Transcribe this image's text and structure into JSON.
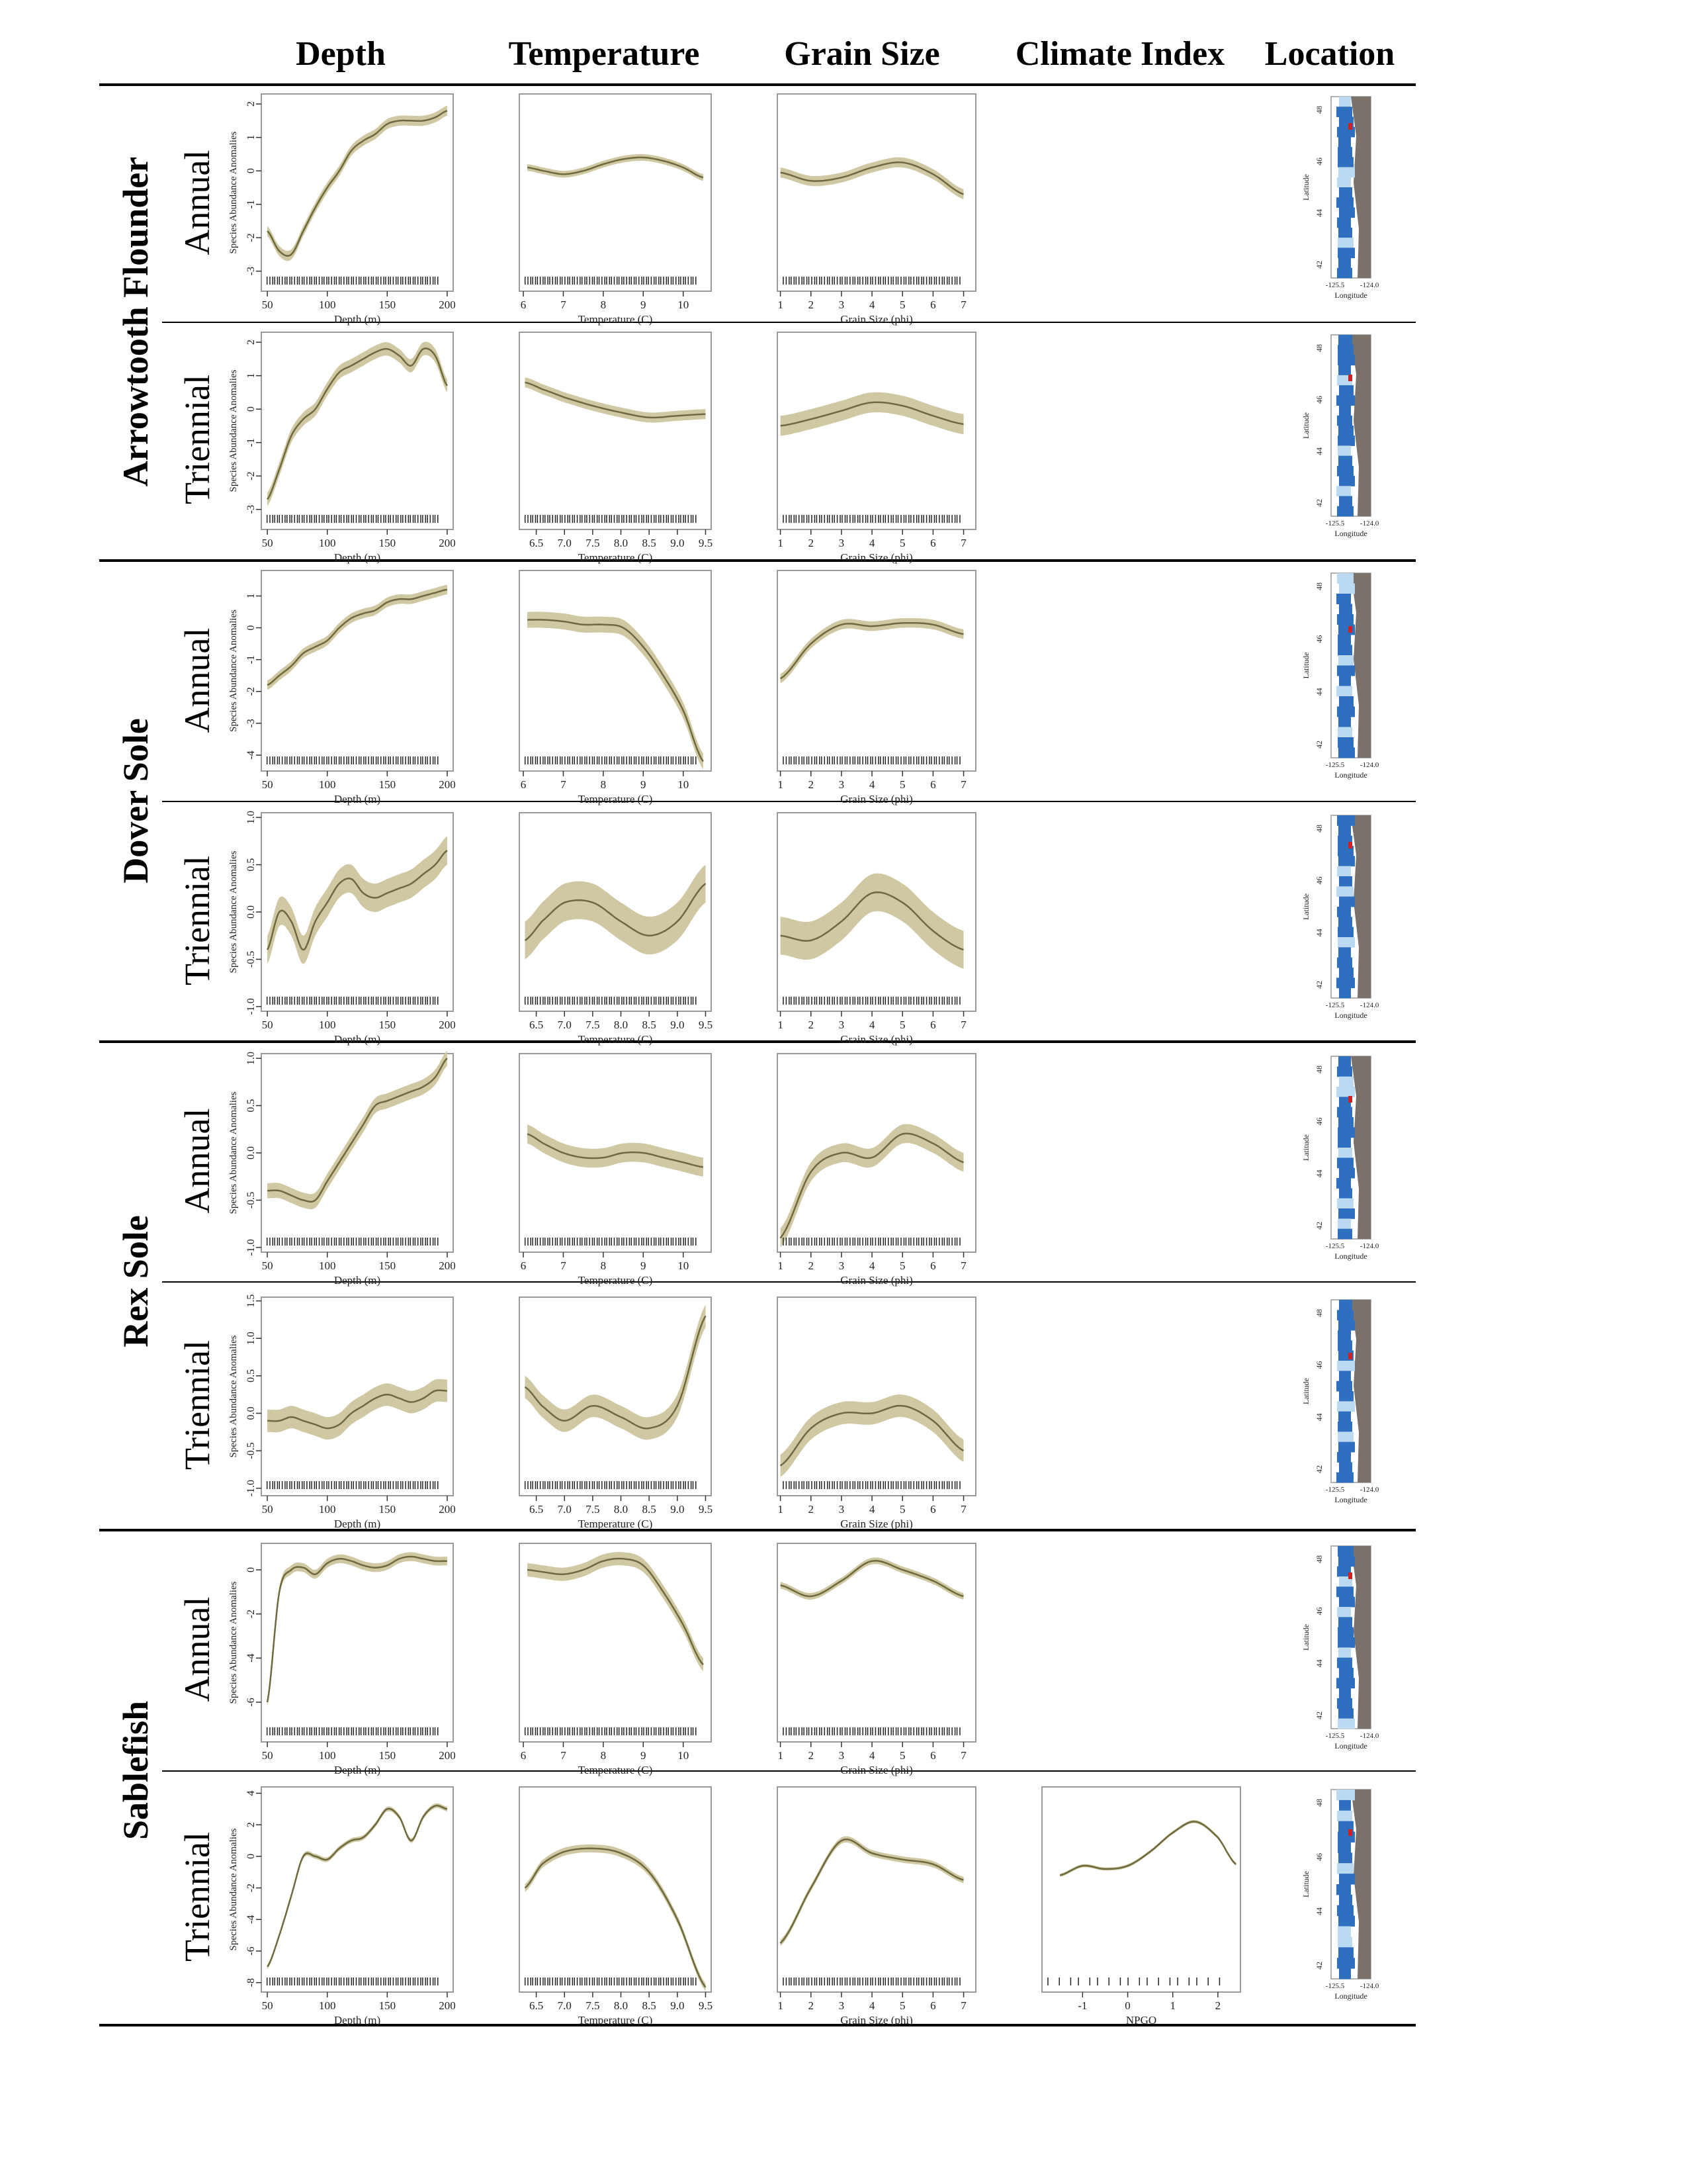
{
  "headers": [
    "Depth",
    "Temperature",
    "Grain Size",
    "Climate Index",
    "Location"
  ],
  "species": [
    "Arrowtooth Flounder",
    "Dover Sole",
    "Rex Sole",
    "Sablefish"
  ],
  "surveys": [
    "Annual",
    "Triennial"
  ],
  "axis_labels": {
    "ylabel": "Species Abundance Anomalies",
    "depth": "Depth (m)",
    "temperature": "Temperature (C)",
    "grain": "Grain Size (phi)",
    "climate": "NPGO",
    "lat": "Latitude",
    "lon": "Longitude"
  },
  "map_ticks": {
    "lat": [
      "48",
      "46",
      "44",
      "42"
    ],
    "lon": [
      "-125.5",
      "-124.0"
    ]
  },
  "colors": {
    "band": "#cfc8a2",
    "curve": "#6f6a3e",
    "land": "#7b716b",
    "water_dark": "#2f6fc0",
    "water_light": "#bcd9f2",
    "hotspot": "#cc2222"
  },
  "chart_data": [
    {
      "type": "line",
      "species": "Arrowtooth Flounder",
      "survey": "Annual",
      "variable": "Depth",
      "x_ticks": [
        "50",
        "100",
        "150",
        "200"
      ],
      "y_ticks": [
        "2",
        "1",
        "0",
        "-1",
        "-2",
        "-3"
      ],
      "xlim": [
        45,
        205
      ],
      "ylim": [
        -3.6,
        2.3
      ],
      "x": [
        50,
        60,
        70,
        80,
        90,
        100,
        110,
        120,
        130,
        140,
        150,
        160,
        170,
        180,
        190,
        200
      ],
      "y": [
        -1.8,
        -2.4,
        -2.5,
        -1.8,
        -1.1,
        -0.5,
        0.0,
        0.6,
        0.9,
        1.1,
        1.4,
        1.5,
        1.5,
        1.5,
        1.6,
        1.8
      ],
      "band": 0.15
    },
    {
      "type": "line",
      "species": "Arrowtooth Flounder",
      "survey": "Annual",
      "variable": "Temperature",
      "x_ticks": [
        "6",
        "7",
        "8",
        "9",
        "10"
      ],
      "y_ticks": [],
      "xlim": [
        5.9,
        10.7
      ],
      "ylim": [
        -3.6,
        2.3
      ],
      "x": [
        6.1,
        6.5,
        7,
        7.5,
        8,
        8.5,
        9,
        9.5,
        10,
        10.5
      ],
      "y": [
        0.1,
        0.0,
        -0.1,
        0.0,
        0.2,
        0.35,
        0.4,
        0.3,
        0.1,
        -0.2
      ],
      "band": 0.1
    },
    {
      "type": "line",
      "species": "Arrowtooth Flounder",
      "survey": "Annual",
      "variable": "Grain Size",
      "x_ticks": [
        "1",
        "2",
        "3",
        "4",
        "5",
        "6",
        "7"
      ],
      "y_ticks": [],
      "xlim": [
        0.9,
        7.4
      ],
      "ylim": [
        -3.6,
        2.3
      ],
      "x": [
        1,
        2,
        3,
        4,
        5,
        6,
        7
      ],
      "y": [
        -0.05,
        -0.3,
        -0.2,
        0.1,
        0.25,
        -0.1,
        -0.7
      ],
      "band": 0.15
    },
    {
      "type": "line",
      "species": "Arrowtooth Flounder",
      "survey": "Triennial",
      "variable": "Depth",
      "x_ticks": [
        "50",
        "100",
        "150",
        "200"
      ],
      "y_ticks": [
        "2",
        "1",
        "0",
        "-1",
        "-2",
        "-3"
      ],
      "xlim": [
        45,
        205
      ],
      "ylim": [
        -3.6,
        2.3
      ],
      "x": [
        50,
        60,
        70,
        80,
        90,
        100,
        110,
        120,
        130,
        140,
        150,
        160,
        170,
        180,
        190,
        200
      ],
      "y": [
        -2.7,
        -1.8,
        -0.8,
        -0.3,
        0.0,
        0.6,
        1.1,
        1.3,
        1.5,
        1.7,
        1.8,
        1.6,
        1.3,
        1.8,
        1.6,
        0.7
      ],
      "band": 0.2
    },
    {
      "type": "line",
      "species": "Arrowtooth Flounder",
      "survey": "Triennial",
      "variable": "Temperature",
      "x_ticks": [
        "6.5",
        "7.0",
        "7.5",
        "8.0",
        "8.5",
        "9.0",
        "9.5"
      ],
      "y_ticks": [],
      "xlim": [
        6.2,
        9.6
      ],
      "ylim": [
        -3.6,
        2.3
      ],
      "x": [
        6.3,
        6.6,
        7,
        7.5,
        8,
        8.5,
        9,
        9.5
      ],
      "y": [
        0.8,
        0.6,
        0.35,
        0.1,
        -0.1,
        -0.25,
        -0.2,
        -0.15
      ],
      "band": 0.15
    },
    {
      "type": "line",
      "species": "Arrowtooth Flounder",
      "survey": "Triennial",
      "variable": "Grain Size",
      "x_ticks": [
        "1",
        "2",
        "3",
        "4",
        "5",
        "6",
        "7"
      ],
      "y_ticks": [],
      "xlim": [
        0.9,
        7.4
      ],
      "ylim": [
        -3.6,
        2.3
      ],
      "x": [
        1,
        2,
        3,
        4,
        5,
        6,
        7
      ],
      "y": [
        -0.5,
        -0.3,
        -0.05,
        0.2,
        0.1,
        -0.2,
        -0.45
      ],
      "band": 0.3
    },
    {
      "type": "line",
      "species": "Dover Sole",
      "survey": "Annual",
      "variable": "Depth",
      "x_ticks": [
        "50",
        "100",
        "150",
        "200"
      ],
      "y_ticks": [
        "1",
        "0",
        "-1",
        "-2",
        "-3",
        "-4"
      ],
      "xlim": [
        45,
        205
      ],
      "ylim": [
        -4.5,
        1.8
      ],
      "x": [
        50,
        60,
        70,
        80,
        90,
        100,
        110,
        120,
        130,
        140,
        150,
        160,
        170,
        180,
        190,
        200
      ],
      "y": [
        -1.8,
        -1.5,
        -1.2,
        -0.8,
        -0.6,
        -0.4,
        0.0,
        0.3,
        0.45,
        0.55,
        0.8,
        0.9,
        0.9,
        1.0,
        1.1,
        1.2
      ],
      "band": 0.15
    },
    {
      "type": "line",
      "species": "Dover Sole",
      "survey": "Annual",
      "variable": "Temperature",
      "x_ticks": [
        "6",
        "7",
        "8",
        "9",
        "10"
      ],
      "y_ticks": [],
      "xlim": [
        5.9,
        10.7
      ],
      "ylim": [
        -4.5,
        1.8
      ],
      "x": [
        6.1,
        6.5,
        7,
        7.5,
        8,
        8.5,
        9,
        9.5,
        10,
        10.5
      ],
      "y": [
        0.25,
        0.25,
        0.2,
        0.1,
        0.1,
        0.0,
        -0.6,
        -1.5,
        -2.6,
        -4.2
      ],
      "band": 0.25
    },
    {
      "type": "line",
      "species": "Dover Sole",
      "survey": "Annual",
      "variable": "Grain Size",
      "x_ticks": [
        "1",
        "2",
        "3",
        "4",
        "5",
        "6",
        "7"
      ],
      "y_ticks": [],
      "xlim": [
        0.9,
        7.4
      ],
      "ylim": [
        -4.5,
        1.8
      ],
      "x": [
        1,
        2,
        3,
        4,
        5,
        6,
        7
      ],
      "y": [
        -1.6,
        -0.5,
        0.1,
        0.05,
        0.15,
        0.1,
        -0.2
      ],
      "band": 0.15
    },
    {
      "type": "line",
      "species": "Dover Sole",
      "survey": "Triennial",
      "variable": "Depth",
      "x_ticks": [
        "50",
        "100",
        "150",
        "200"
      ],
      "y_ticks": [
        "1.0",
        "0.5",
        "0.0",
        "-0.5",
        "-1.0"
      ],
      "xlim": [
        45,
        205
      ],
      "ylim": [
        -1.05,
        1.05
      ],
      "x": [
        50,
        60,
        70,
        80,
        90,
        100,
        110,
        120,
        130,
        140,
        150,
        160,
        170,
        180,
        190,
        200
      ],
      "y": [
        -0.4,
        0.0,
        -0.1,
        -0.4,
        -0.1,
        0.1,
        0.3,
        0.35,
        0.2,
        0.15,
        0.2,
        0.25,
        0.3,
        0.4,
        0.5,
        0.65
      ],
      "band": 0.15
    },
    {
      "type": "line",
      "species": "Dover Sole",
      "survey": "Triennial",
      "variable": "Temperature",
      "x_ticks": [
        "6.5",
        "7.0",
        "7.5",
        "8.0",
        "8.5",
        "9.0",
        "9.5"
      ],
      "y_ticks": [],
      "xlim": [
        6.2,
        9.6
      ],
      "ylim": [
        -1.05,
        1.05
      ],
      "x": [
        6.3,
        6.6,
        7,
        7.5,
        8,
        8.5,
        9,
        9.5
      ],
      "y": [
        -0.3,
        -0.1,
        0.1,
        0.1,
        -0.1,
        -0.25,
        -0.1,
        0.3
      ],
      "band": 0.2
    },
    {
      "type": "line",
      "species": "Dover Sole",
      "survey": "Triennial",
      "variable": "Grain Size",
      "x_ticks": [
        "1",
        "2",
        "3",
        "4",
        "5",
        "6",
        "7"
      ],
      "y_ticks": [],
      "xlim": [
        0.9,
        7.4
      ],
      "ylim": [
        -1.05,
        1.05
      ],
      "x": [
        1,
        2,
        3,
        4,
        5,
        6,
        7
      ],
      "y": [
        -0.25,
        -0.3,
        -0.1,
        0.2,
        0.1,
        -0.2,
        -0.4
      ],
      "band": 0.2
    },
    {
      "type": "line",
      "species": "Rex Sole",
      "survey": "Annual",
      "variable": "Depth",
      "x_ticks": [
        "50",
        "100",
        "150",
        "200"
      ],
      "y_ticks": [
        "1.0",
        "0.5",
        "0.0",
        "-0.5",
        "-1.0"
      ],
      "xlim": [
        45,
        205
      ],
      "ylim": [
        -1.05,
        1.05
      ],
      "x": [
        50,
        60,
        70,
        80,
        90,
        100,
        110,
        120,
        130,
        140,
        150,
        160,
        170,
        180,
        190,
        200
      ],
      "y": [
        -0.4,
        -0.4,
        -0.45,
        -0.5,
        -0.5,
        -0.3,
        -0.1,
        0.1,
        0.3,
        0.5,
        0.55,
        0.6,
        0.65,
        0.7,
        0.8,
        1.0
      ],
      "band": 0.08
    },
    {
      "type": "line",
      "species": "Rex Sole",
      "survey": "Annual",
      "variable": "Temperature",
      "x_ticks": [
        "6",
        "7",
        "8",
        "9",
        "10"
      ],
      "y_ticks": [],
      "xlim": [
        5.9,
        10.7
      ],
      "ylim": [
        -1.05,
        1.05
      ],
      "x": [
        6.1,
        6.5,
        7,
        7.5,
        8,
        8.5,
        9,
        9.5,
        10,
        10.5
      ],
      "y": [
        0.2,
        0.1,
        0.0,
        -0.05,
        -0.05,
        0.0,
        0.0,
        -0.05,
        -0.1,
        -0.15
      ],
      "band": 0.1
    },
    {
      "type": "line",
      "species": "Rex Sole",
      "survey": "Annual",
      "variable": "Grain Size",
      "x_ticks": [
        "1",
        "2",
        "3",
        "4",
        "5",
        "6",
        "7"
      ],
      "y_ticks": [],
      "xlim": [
        0.9,
        7.4
      ],
      "ylim": [
        -1.05,
        1.05
      ],
      "x": [
        1,
        2,
        3,
        4,
        5,
        6,
        7
      ],
      "y": [
        -0.9,
        -0.2,
        0.0,
        -0.05,
        0.2,
        0.1,
        -0.1
      ],
      "band": 0.1
    },
    {
      "type": "line",
      "species": "Rex Sole",
      "survey": "Triennial",
      "variable": "Depth",
      "x_ticks": [
        "50",
        "100",
        "150",
        "200"
      ],
      "y_ticks": [
        "1.5",
        "1.0",
        "0.5",
        "0.0",
        "-0.5",
        "-1.0"
      ],
      "xlim": [
        45,
        205
      ],
      "ylim": [
        -1.1,
        1.55
      ],
      "x": [
        50,
        60,
        70,
        80,
        90,
        100,
        110,
        120,
        130,
        140,
        150,
        160,
        170,
        180,
        190,
        200
      ],
      "y": [
        -0.1,
        -0.1,
        -0.05,
        -0.1,
        -0.15,
        -0.2,
        -0.15,
        0.0,
        0.1,
        0.2,
        0.25,
        0.2,
        0.15,
        0.2,
        0.3,
        0.3
      ],
      "band": 0.15
    },
    {
      "type": "line",
      "species": "Rex Sole",
      "survey": "Triennial",
      "variable": "Temperature",
      "x_ticks": [
        "6.5",
        "7.0",
        "7.5",
        "8.0",
        "8.5",
        "9.0",
        "9.5"
      ],
      "y_ticks": [],
      "xlim": [
        6.2,
        9.6
      ],
      "ylim": [
        -1.1,
        1.55
      ],
      "x": [
        6.3,
        6.6,
        7,
        7.5,
        8,
        8.5,
        9,
        9.5
      ],
      "y": [
        0.35,
        0.1,
        -0.1,
        0.1,
        -0.05,
        -0.2,
        0.1,
        1.3
      ],
      "band": 0.15
    },
    {
      "type": "line",
      "species": "Rex Sole",
      "survey": "Triennial",
      "variable": "Grain Size",
      "x_ticks": [
        "1",
        "2",
        "3",
        "4",
        "5",
        "6",
        "7"
      ],
      "y_ticks": [],
      "xlim": [
        0.9,
        7.4
      ],
      "ylim": [
        -1.1,
        1.55
      ],
      "x": [
        1,
        2,
        3,
        4,
        5,
        6,
        7
      ],
      "y": [
        -0.7,
        -0.2,
        0.0,
        0.0,
        0.1,
        -0.1,
        -0.5
      ],
      "band": 0.15
    },
    {
      "type": "line",
      "species": "Sablefish",
      "survey": "Annual",
      "variable": "Depth",
      "x_ticks": [
        "50",
        "100",
        "150",
        "200"
      ],
      "y_ticks": [
        "0",
        "-2",
        "-4",
        "-6"
      ],
      "xlim": [
        45,
        205
      ],
      "ylim": [
        -7.8,
        1.2
      ],
      "x": [
        50,
        60,
        70,
        80,
        90,
        100,
        110,
        120,
        130,
        140,
        150,
        160,
        170,
        180,
        190,
        200
      ],
      "y": [
        -6.0,
        -1.0,
        0.0,
        0.1,
        -0.2,
        0.3,
        0.5,
        0.4,
        0.2,
        0.1,
        0.2,
        0.5,
        0.6,
        0.5,
        0.4,
        0.4
      ],
      "band": 0.2
    },
    {
      "type": "line",
      "species": "Sablefish",
      "survey": "Annual",
      "variable": "Temperature",
      "x_ticks": [
        "6",
        "7",
        "8",
        "9",
        "10"
      ],
      "y_ticks": [],
      "xlim": [
        5.9,
        10.7
      ],
      "ylim": [
        -7.8,
        1.2
      ],
      "x": [
        6.1,
        6.5,
        7,
        7.5,
        8,
        8.5,
        9,
        9.5,
        10,
        10.5
      ],
      "y": [
        0.0,
        -0.1,
        -0.2,
        0.0,
        0.4,
        0.5,
        0.2,
        -1.0,
        -2.5,
        -4.3
      ],
      "band": 0.3
    },
    {
      "type": "line",
      "species": "Sablefish",
      "survey": "Annual",
      "variable": "Grain Size",
      "x_ticks": [
        "1",
        "2",
        "3",
        "4",
        "5",
        "6",
        "7"
      ],
      "y_ticks": [],
      "xlim": [
        0.9,
        7.4
      ],
      "ylim": [
        -7.8,
        1.2
      ],
      "x": [
        1,
        2,
        3,
        4,
        5,
        6,
        7
      ],
      "y": [
        -0.7,
        -1.2,
        -0.5,
        0.4,
        0.0,
        -0.5,
        -1.2
      ],
      "band": 0.15
    },
    {
      "type": "line",
      "species": "Sablefish",
      "survey": "Triennial",
      "variable": "Depth",
      "x_ticks": [
        "50",
        "100",
        "150",
        "200"
      ],
      "y_ticks": [
        "4",
        "2",
        "0",
        "-2",
        "-4",
        "-6",
        "-8"
      ],
      "xlim": [
        45,
        205
      ],
      "ylim": [
        -8.6,
        4.4
      ],
      "x": [
        50,
        60,
        70,
        80,
        90,
        100,
        110,
        120,
        130,
        140,
        150,
        160,
        170,
        180,
        190,
        200
      ],
      "y": [
        -7.0,
        -5.0,
        -2.5,
        0.0,
        0.0,
        -0.2,
        0.5,
        1.0,
        1.2,
        2.0,
        3.0,
        2.5,
        1.0,
        2.5,
        3.2,
        3.0
      ],
      "band": 0.15
    },
    {
      "type": "line",
      "species": "Sablefish",
      "survey": "Triennial",
      "variable": "Temperature",
      "x_ticks": [
        "6.5",
        "7.0",
        "7.5",
        "8.0",
        "8.5",
        "9.0",
        "9.5"
      ],
      "y_ticks": [],
      "xlim": [
        6.2,
        9.6
      ],
      "ylim": [
        -8.6,
        4.4
      ],
      "x": [
        6.3,
        6.6,
        7,
        7.5,
        8,
        8.5,
        9,
        9.5
      ],
      "y": [
        -2.0,
        -0.5,
        0.3,
        0.5,
        0.2,
        -1.0,
        -4.0,
        -8.3
      ],
      "band": 0.25
    },
    {
      "type": "line",
      "species": "Sablefish",
      "survey": "Triennial",
      "variable": "Grain Size",
      "x_ticks": [
        "1",
        "2",
        "3",
        "4",
        "5",
        "6",
        "7"
      ],
      "y_ticks": [],
      "xlim": [
        0.9,
        7.4
      ],
      "ylim": [
        -8.6,
        4.4
      ],
      "x": [
        1,
        2,
        3,
        4,
        5,
        6,
        7
      ],
      "y": [
        -5.5,
        -2.0,
        1.0,
        0.2,
        -0.2,
        -0.5,
        -1.5
      ],
      "band": 0.2
    },
    {
      "type": "line",
      "species": "Sablefish",
      "survey": "Triennial",
      "variable": "Climate Index",
      "x_ticks": [
        "-1",
        "0",
        "1",
        "2"
      ],
      "y_ticks": [],
      "xlim": [
        -1.9,
        2.5
      ],
      "ylim": [
        -8.6,
        4.4
      ],
      "x": [
        -1.5,
        -1.0,
        -0.5,
        0.0,
        0.5,
        1.0,
        1.5,
        2.0,
        2.4
      ],
      "y": [
        -1.2,
        -0.6,
        -0.8,
        -0.6,
        0.3,
        1.5,
        2.2,
        1.2,
        -0.5
      ],
      "band": 0.1
    }
  ]
}
